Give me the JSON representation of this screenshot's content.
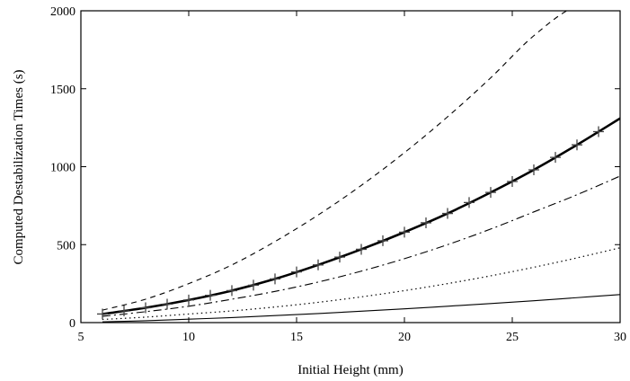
{
  "chart_data": {
    "type": "line",
    "title": "",
    "xlabel": "Initial Height (mm)",
    "ylabel": "Computed Destabilization Times (s)",
    "xlim": [
      5,
      30
    ],
    "ylim": [
      0,
      2000
    ],
    "xticks": [
      5,
      10,
      15,
      20,
      25,
      30
    ],
    "yticks": [
      0,
      500,
      1000,
      1500,
      2000
    ],
    "x_tick_labels": [
      "5",
      "10",
      "15",
      "20",
      "25",
      "30"
    ],
    "y_tick_labels": [
      "0",
      "500",
      "1000",
      "1500",
      "2000"
    ],
    "grid": false,
    "legend": "none",
    "x": [
      6,
      8,
      10,
      12,
      14,
      16,
      18,
      20,
      22,
      24,
      26,
      28,
      30
    ],
    "series": [
      {
        "style": "dashed",
        "values": [
          80,
          150,
          250,
          370,
          520,
          690,
          880,
          1090,
          1320,
          1570,
          1840,
          2030,
          2030
        ]
      },
      {
        "style": "thick-solid",
        "values": [
          55,
          95,
          145,
          205,
          280,
          370,
          470,
          580,
          700,
          835,
          980,
          1140,
          1310
        ]
      },
      {
        "style": "dash-dot",
        "values": [
          40,
          70,
          105,
          150,
          200,
          260,
          330,
          410,
          500,
          600,
          710,
          820,
          940
        ]
      },
      {
        "style": "dotted",
        "values": [
          20,
          35,
          55,
          75,
          100,
          130,
          165,
          205,
          250,
          300,
          355,
          415,
          480
        ]
      },
      {
        "style": "thin-solid",
        "values": [
          5,
          12,
          22,
          32,
          45,
          58,
          73,
          88,
          105,
          122,
          140,
          160,
          180
        ]
      }
    ],
    "markers": {
      "symbol": "+",
      "x": [
        6,
        7,
        8,
        9,
        10,
        11,
        12,
        13,
        14,
        15,
        16,
        17,
        18,
        19,
        20,
        21,
        22,
        23,
        24,
        25,
        26,
        27,
        28,
        29
      ],
      "values": [
        55,
        75,
        95,
        118,
        145,
        175,
        205,
        240,
        280,
        325,
        370,
        420,
        470,
        525,
        580,
        640,
        700,
        770,
        835,
        905,
        980,
        1060,
        1140,
        1225
      ]
    }
  }
}
